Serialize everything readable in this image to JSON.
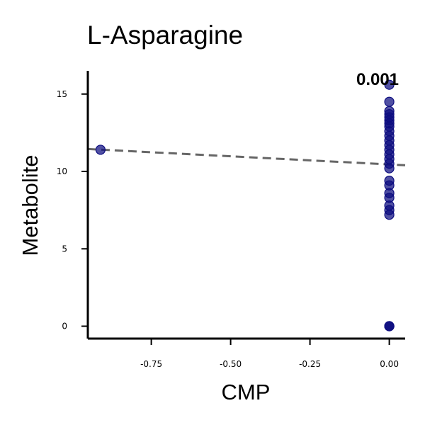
{
  "chart_data": {
    "type": "scatter",
    "title": "L-Asparagine",
    "xlabel": "CMP",
    "ylabel": "Metabolite",
    "xlim": [
      -0.95,
      0.05
    ],
    "ylim": [
      -0.8,
      16.5
    ],
    "x_ticks": [
      -0.75,
      -0.5,
      -0.25,
      0.0
    ],
    "x_tick_labels": [
      "-0.75",
      "-0.50",
      "-0.25",
      "0.00"
    ],
    "y_ticks": [
      0,
      5,
      10,
      15
    ],
    "y_tick_labels": [
      "0",
      "5",
      "10",
      "15"
    ],
    "grid": false,
    "point_color": "#0d0d80",
    "trend_color": "#666666",
    "annotation": "0.001",
    "points": [
      {
        "x": -0.91,
        "y": 11.4
      },
      {
        "x": 0.0,
        "y": 15.6
      },
      {
        "x": 0.0,
        "y": 14.5
      },
      {
        "x": 0.0,
        "y": 13.9
      },
      {
        "x": 0.0,
        "y": 13.7
      },
      {
        "x": 0.0,
        "y": 13.5
      },
      {
        "x": 0.0,
        "y": 13.3
      },
      {
        "x": 0.0,
        "y": 13.1
      },
      {
        "x": 0.0,
        "y": 12.9
      },
      {
        "x": 0.0,
        "y": 12.6
      },
      {
        "x": 0.0,
        "y": 12.3
      },
      {
        "x": 0.0,
        "y": 12.0
      },
      {
        "x": 0.0,
        "y": 11.7
      },
      {
        "x": 0.0,
        "y": 11.4
      },
      {
        "x": 0.0,
        "y": 11.1
      },
      {
        "x": 0.0,
        "y": 10.8
      },
      {
        "x": 0.0,
        "y": 10.5
      },
      {
        "x": 0.0,
        "y": 10.2
      },
      {
        "x": 0.0,
        "y": 9.4
      },
      {
        "x": 0.0,
        "y": 9.1
      },
      {
        "x": 0.0,
        "y": 8.6
      },
      {
        "x": 0.0,
        "y": 8.3
      },
      {
        "x": 0.0,
        "y": 7.8
      },
      {
        "x": 0.0,
        "y": 7.5
      },
      {
        "x": 0.0,
        "y": 7.2
      },
      {
        "x": 0.0,
        "y": 0.0
      },
      {
        "x": 0.0,
        "y": 0.0
      },
      {
        "x": 0.0,
        "y": 0.0
      }
    ],
    "trend_line": {
      "x": [
        -0.95,
        0.05
      ],
      "y": [
        11.45,
        10.4
      ]
    }
  }
}
